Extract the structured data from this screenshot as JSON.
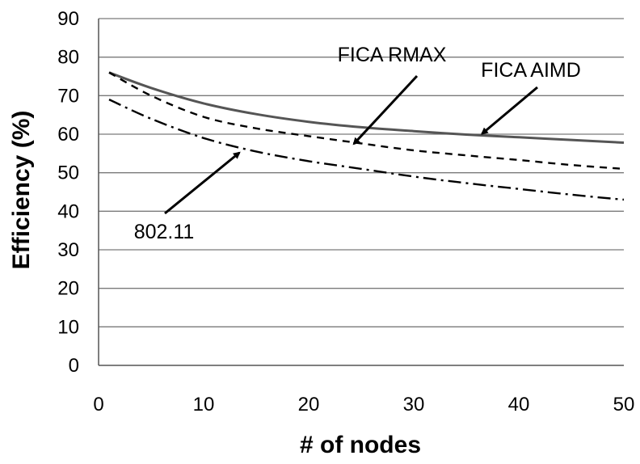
{
  "chart_data": {
    "type": "line",
    "title": "",
    "xlabel": "# of nodes",
    "ylabel": "Efficiency (%)",
    "xlim": [
      0,
      50
    ],
    "ylim": [
      0,
      90
    ],
    "x_ticks": [
      0,
      10,
      20,
      30,
      40,
      50
    ],
    "y_ticks": [
      0,
      10,
      20,
      30,
      40,
      50,
      60,
      70,
      80,
      90
    ],
    "grid": "horizontal",
    "legend": "none (inline arrow annotations)",
    "series": [
      {
        "name": "FICA AIMD",
        "style": "solid",
        "color": "#555555",
        "x": [
          1,
          5,
          10,
          15,
          20,
          25,
          30,
          35,
          40,
          45,
          50
        ],
        "y": [
          76,
          72,
          68,
          65.2,
          63.2,
          61.8,
          60.8,
          59.9,
          59.2,
          58.5,
          57.8
        ]
      },
      {
        "name": "FICA RMAX",
        "style": "dashed",
        "color": "#000000",
        "x": [
          1,
          5,
          10,
          15,
          20,
          25,
          30,
          35,
          40,
          45,
          50
        ],
        "y": [
          76,
          70,
          64.5,
          61.5,
          59.5,
          57.6,
          55.8,
          54.5,
          53.3,
          52,
          51
        ]
      },
      {
        "name": "802.11",
        "style": "dashdot",
        "color": "#000000",
        "x": [
          1,
          5,
          10,
          15,
          20,
          25,
          30,
          35,
          40,
          45,
          50
        ],
        "y": [
          69,
          64,
          59,
          55.5,
          53,
          51,
          49,
          47.3,
          45.8,
          44.3,
          43
        ]
      }
    ],
    "annotations": [
      {
        "label": "FICA RMAX",
        "series": "FICA RMAX",
        "target_x": 24.3,
        "target_y": 57.5
      },
      {
        "label": "FICA AIMD",
        "series": "FICA AIMD",
        "target_x": 36.5,
        "target_y": 60.1
      },
      {
        "label": "802.11",
        "series": "802.11",
        "target_x": 13.4,
        "target_y": 55.2
      }
    ]
  }
}
